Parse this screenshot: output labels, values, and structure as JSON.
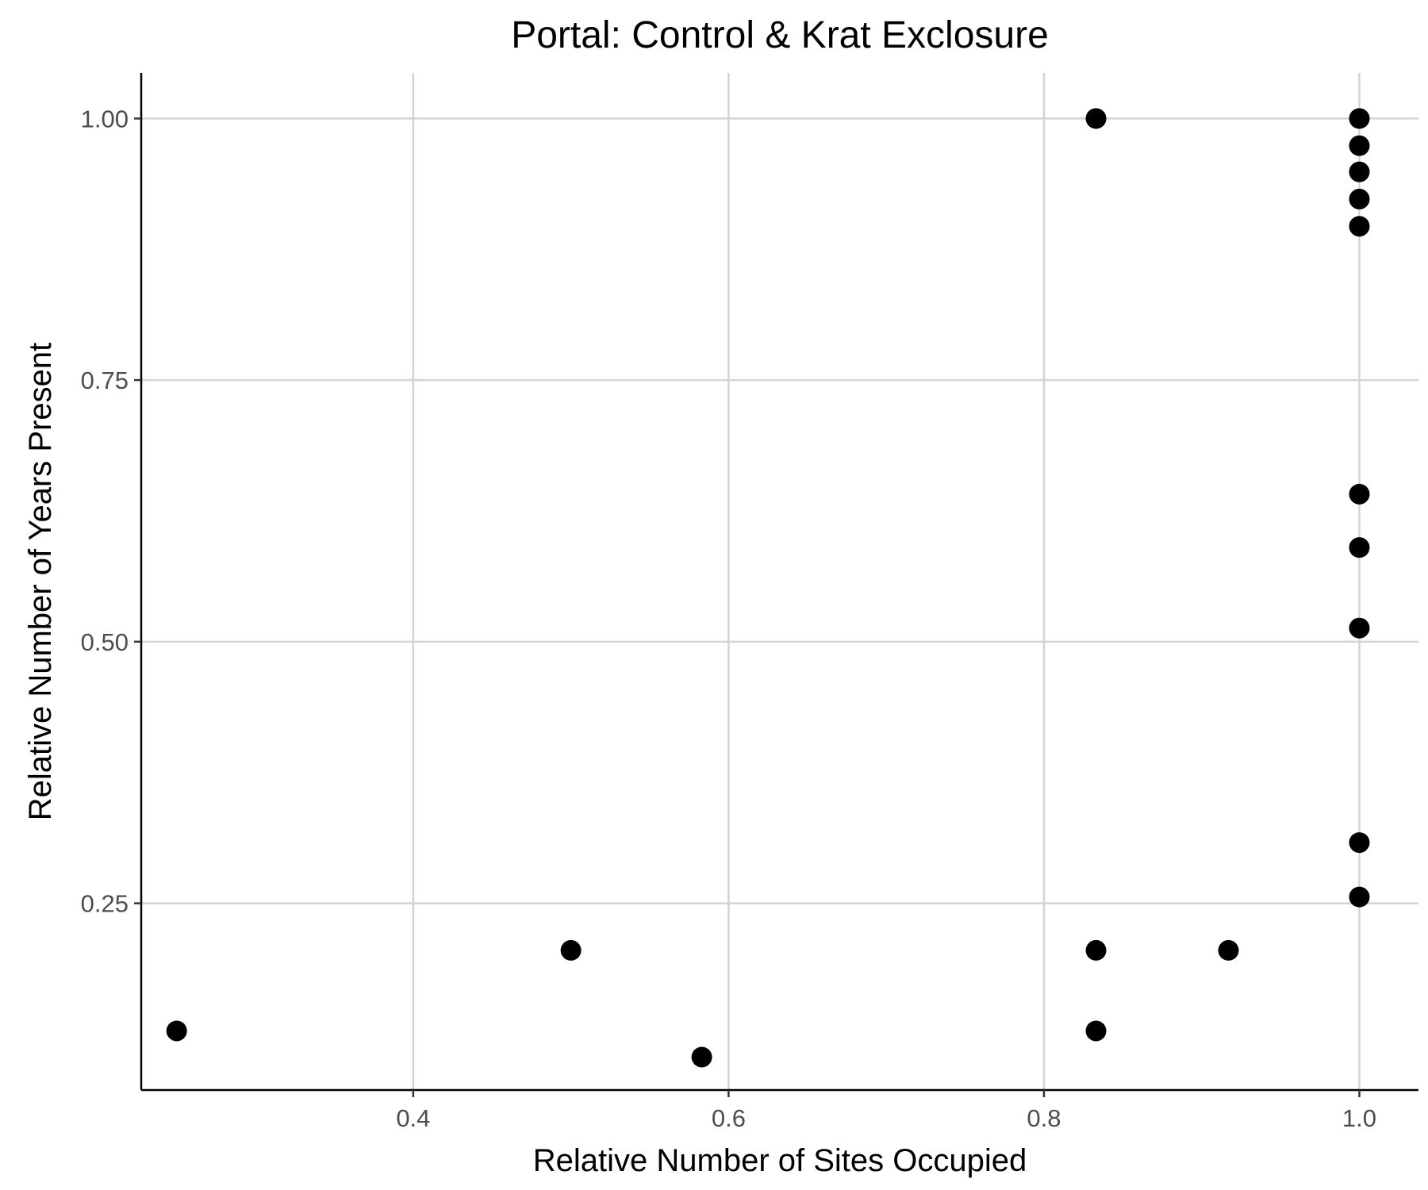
{
  "chart_data": {
    "type": "scatter",
    "title": "Portal: Control & Krat Exclosure",
    "xlabel": "Relative Number of Sites Occupied",
    "ylabel": "Relative Number of Years Present",
    "xlim": [
      0.2275,
      1.0375
    ],
    "ylim": [
      0.0715,
      1.0435
    ],
    "x_ticks": [
      0.4,
      0.6,
      0.8,
      1.0
    ],
    "x_tick_labels": [
      "0.4",
      "0.6",
      "0.8",
      "1.0"
    ],
    "y_ticks": [
      0.25,
      0.5,
      0.75,
      1.0
    ],
    "y_tick_labels": [
      "0.25",
      "0.50",
      "0.75",
      "1.00"
    ],
    "grid": true,
    "legend": false,
    "point_color": "#000000",
    "grid_color": "#d3d3d3",
    "axis_color": "#000000",
    "points": [
      {
        "x": 0.25,
        "y": 0.128
      },
      {
        "x": 0.5,
        "y": 0.205
      },
      {
        "x": 0.583,
        "y": 0.103
      },
      {
        "x": 0.833,
        "y": 1.0
      },
      {
        "x": 0.833,
        "y": 0.205
      },
      {
        "x": 0.833,
        "y": 0.128
      },
      {
        "x": 0.917,
        "y": 0.205
      },
      {
        "x": 1.0,
        "y": 1.0
      },
      {
        "x": 1.0,
        "y": 0.974
      },
      {
        "x": 1.0,
        "y": 0.949
      },
      {
        "x": 1.0,
        "y": 0.923
      },
      {
        "x": 1.0,
        "y": 0.897
      },
      {
        "x": 1.0,
        "y": 0.641
      },
      {
        "x": 1.0,
        "y": 0.59
      },
      {
        "x": 1.0,
        "y": 0.513
      },
      {
        "x": 1.0,
        "y": 0.308
      },
      {
        "x": 1.0,
        "y": 0.256
      }
    ]
  }
}
